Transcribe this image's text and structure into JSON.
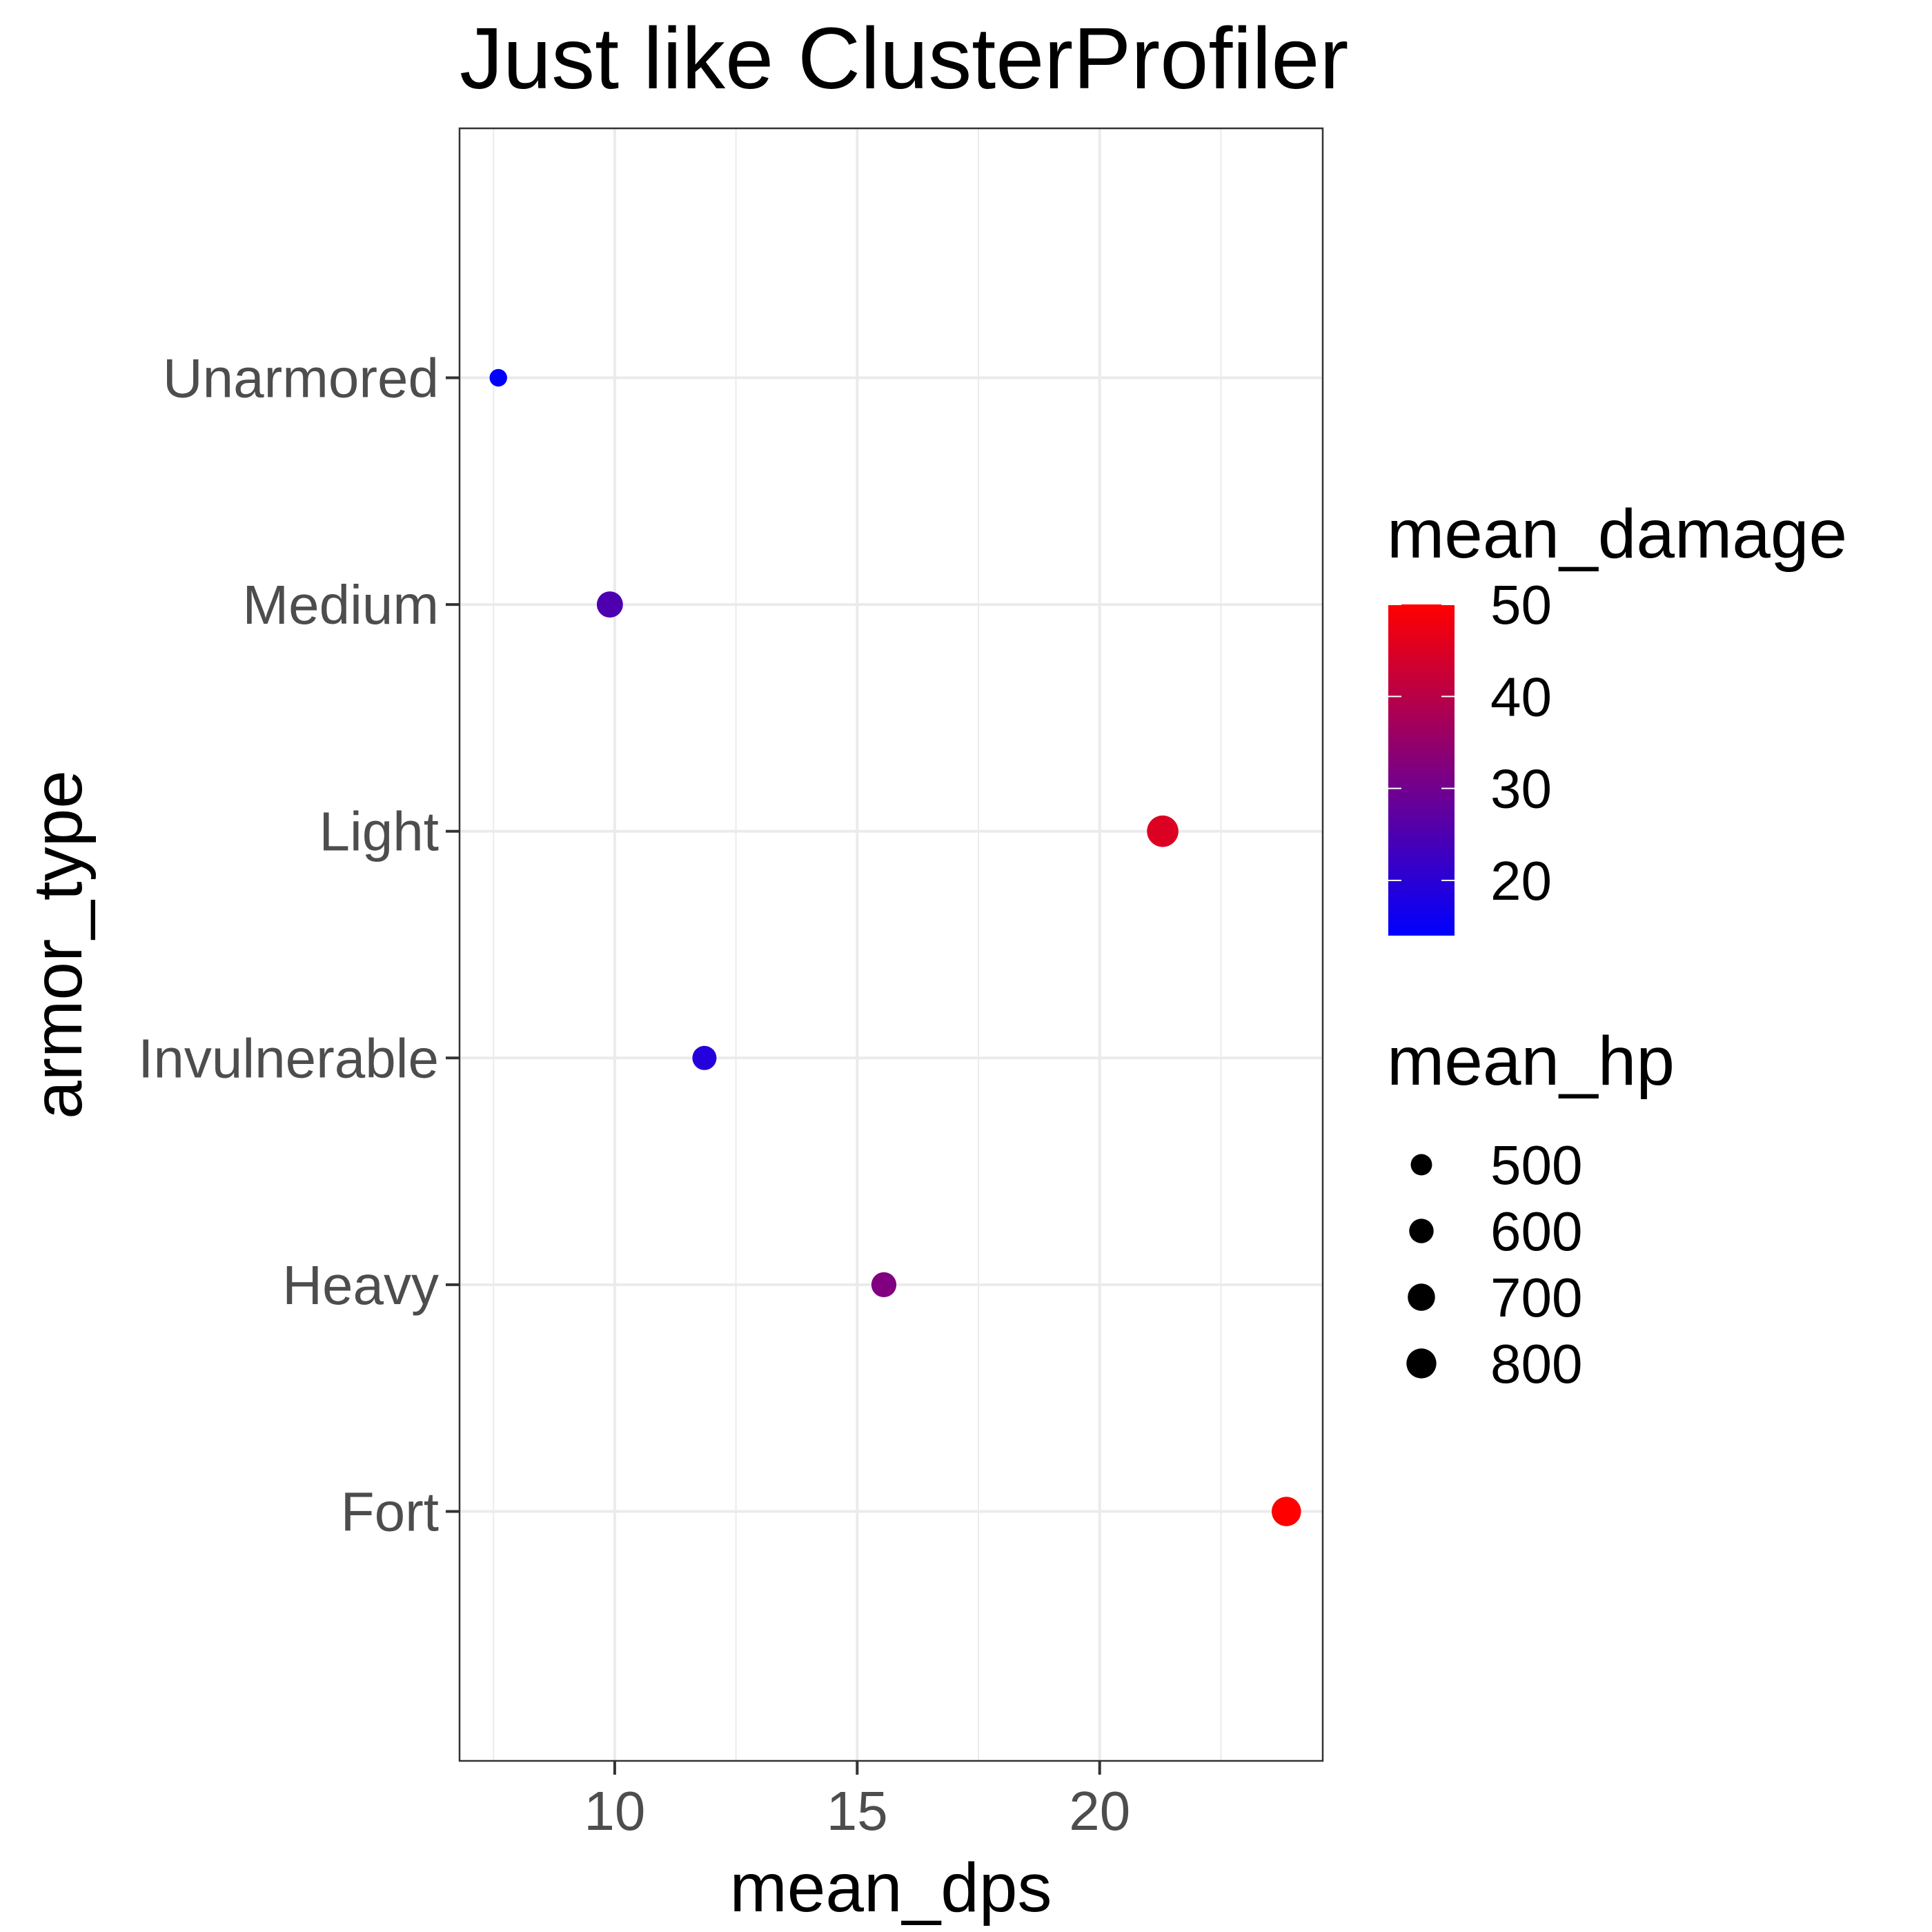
{
  "chart_data": {
    "type": "scatter",
    "title": "Just like ClusterProfiler",
    "xlabel": "mean_dps",
    "ylabel": "armor_type",
    "xlim": [
      6.8,
      24.6
    ],
    "x_ticks": [
      10,
      15,
      20
    ],
    "grid": true,
    "categories": [
      "Fort",
      "Heavy",
      "Invulnerable",
      "Light",
      "Medium",
      "Unarmored"
    ],
    "points": [
      {
        "category": "Unarmored",
        "x": 7.6,
        "mean_damage": 14,
        "mean_hp": 390
      },
      {
        "category": "Medium",
        "x": 9.9,
        "mean_damage": 25,
        "mean_hp": 660
      },
      {
        "category": "Light",
        "x": 21.3,
        "mean_damage": 45,
        "mean_hp": 860
      },
      {
        "category": "Invulnerable",
        "x": 11.85,
        "mean_damage": 19,
        "mean_hp": 590
      },
      {
        "category": "Heavy",
        "x": 15.55,
        "mean_damage": 32,
        "mean_hp": 620
      },
      {
        "category": "Fort",
        "x": 23.85,
        "mean_damage": 50,
        "mean_hp": 780
      }
    ],
    "color_legend": {
      "title": "mean_damage",
      "min": 14,
      "max": 50,
      "ticks": [
        20,
        30,
        40,
        50
      ],
      "low_color": "#0000ff",
      "high_color": "#ff0000",
      "placement": "right"
    },
    "size_legend": {
      "title": "mean_hp",
      "values": [
        500,
        600,
        700,
        800
      ],
      "placement": "right"
    }
  }
}
